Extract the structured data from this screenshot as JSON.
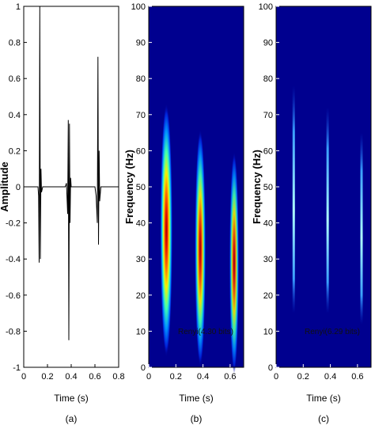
{
  "chart_data": [
    {
      "type": "line",
      "panel_label": "(a)",
      "xlabel": "Time (s)",
      "ylabel": "Amplitude",
      "xlim": [
        0,
        0.8
      ],
      "ylim": [
        -1,
        1
      ],
      "xticks": [
        "0",
        "0.2",
        "0.4",
        "0.6",
        "0.8"
      ],
      "yticks": [
        "-1",
        "-0.8",
        "-0.6",
        "-0.4",
        "-0.2",
        "0",
        "0.2",
        "0.4",
        "0.6",
        "0.8",
        "1"
      ],
      "series": [
        {
          "color": "#000000",
          "x": [
            0,
            0.12,
            0.125,
            0.13,
            0.135,
            0.14,
            0.145,
            0.15,
            0.16,
            0.35,
            0.36,
            0.37,
            0.375,
            0.38,
            0.385,
            0.39,
            0.395,
            0.4,
            0.41,
            0.6,
            0.61,
            0.62,
            0.625,
            0.63,
            0.635,
            0.64,
            0.65,
            0.8
          ],
          "y": [
            0,
            0,
            -0.05,
            -0.42,
            1.0,
            -0.4,
            0.1,
            -0.03,
            0,
            0,
            0.02,
            -0.15,
            0.37,
            -0.85,
            0.35,
            -0.2,
            0.05,
            0,
            0,
            0,
            -0.05,
            -0.2,
            0.72,
            -0.32,
            0.2,
            -0.08,
            0,
            0
          ]
        }
      ]
    },
    {
      "type": "heatmap",
      "panel_label": "(b)",
      "xlabel": "Time (s)",
      "ylabel": "Frequency (Hz)",
      "xlim": [
        0,
        0.7
      ],
      "ylim": [
        0,
        100
      ],
      "xticks": [
        "0",
        "0.2",
        "0.4",
        "0.6"
      ],
      "yticks": [
        "0",
        "10",
        "20",
        "30",
        "40",
        "50",
        "60",
        "70",
        "80",
        "90",
        "100"
      ],
      "annotation": "Renyi(4.30 bits)",
      "components": [
        {
          "t": 0.13,
          "f": 38,
          "time_spread": 0.045,
          "freq_spread": 16,
          "peak": 1.0
        },
        {
          "t": 0.38,
          "f": 33,
          "time_spread": 0.04,
          "freq_spread": 15,
          "peak": 0.95
        },
        {
          "t": 0.63,
          "f": 29,
          "time_spread": 0.035,
          "freq_spread": 14,
          "peak": 0.9
        }
      ]
    },
    {
      "type": "heatmap",
      "panel_label": "(c)",
      "xlabel": "Time (s)",
      "ylabel": "Frequency (Hz)",
      "xlim": [
        0,
        0.7
      ],
      "ylim": [
        0,
        100
      ],
      "xticks": [
        "0",
        "0.2",
        "0.4",
        "0.6"
      ],
      "yticks": [
        "0",
        "10",
        "20",
        "30",
        "40",
        "50",
        "60",
        "70",
        "80",
        "90",
        "100"
      ],
      "annotation": "Renyi(6.29 bits)",
      "components": [
        {
          "t": 0.13,
          "f_range": [
            15,
            78
          ]
        },
        {
          "t": 0.38,
          "f_range": [
            15,
            72
          ]
        },
        {
          "t": 0.63,
          "f_range": [
            12,
            65
          ]
        }
      ]
    }
  ],
  "colors": {
    "background_low": "#00008f",
    "signal_line": "#000000",
    "ridge": "#6ec8ff"
  }
}
